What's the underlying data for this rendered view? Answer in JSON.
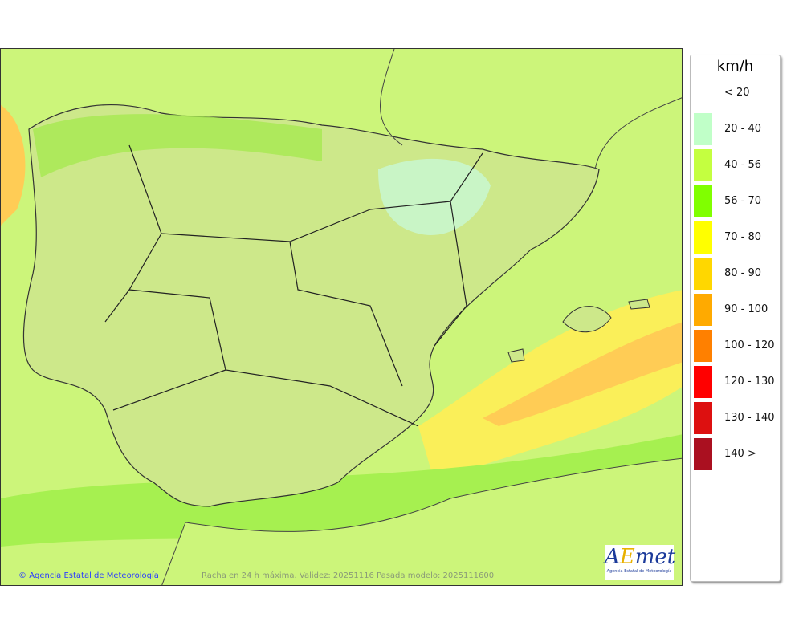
{
  "map": {
    "credit": "Agencia Estatal de Meteorología",
    "caption": "Racha en 24 h máxima. Validez: 20251116 Pasada modelo: 2025111600",
    "logo": {
      "text": "AEmet",
      "subtitle": "Agencia Estatal de Meteorología"
    },
    "colors": {
      "sea": "#ccf57a",
      "land": "#cde88a",
      "gust_56_70": "#a6f050",
      "gust_70_80": "#ffee44",
      "gust_80_90": "#ffcc44",
      "gust_20_40": "#c8f7d4"
    }
  },
  "legend": {
    "unit": "km/h",
    "items": [
      {
        "label": "< 20",
        "color": ""
      },
      {
        "label": "20 - 40",
        "color": "#c0ffc8"
      },
      {
        "label": "40 - 56",
        "color": "#c4ff40"
      },
      {
        "label": "56 - 70",
        "color": "#80ff00"
      },
      {
        "label": "70 - 80",
        "color": "#ffff00"
      },
      {
        "label": "80 - 90",
        "color": "#ffd700"
      },
      {
        "label": "90 - 100",
        "color": "#ffaa00"
      },
      {
        "label": "100 - 120",
        "color": "#ff8000"
      },
      {
        "label": "120 - 130",
        "color": "#ff0000"
      },
      {
        "label": "130 - 140",
        "color": "#dd1010"
      },
      {
        "label": "140 >",
        "color": "#aa1020"
      }
    ]
  }
}
